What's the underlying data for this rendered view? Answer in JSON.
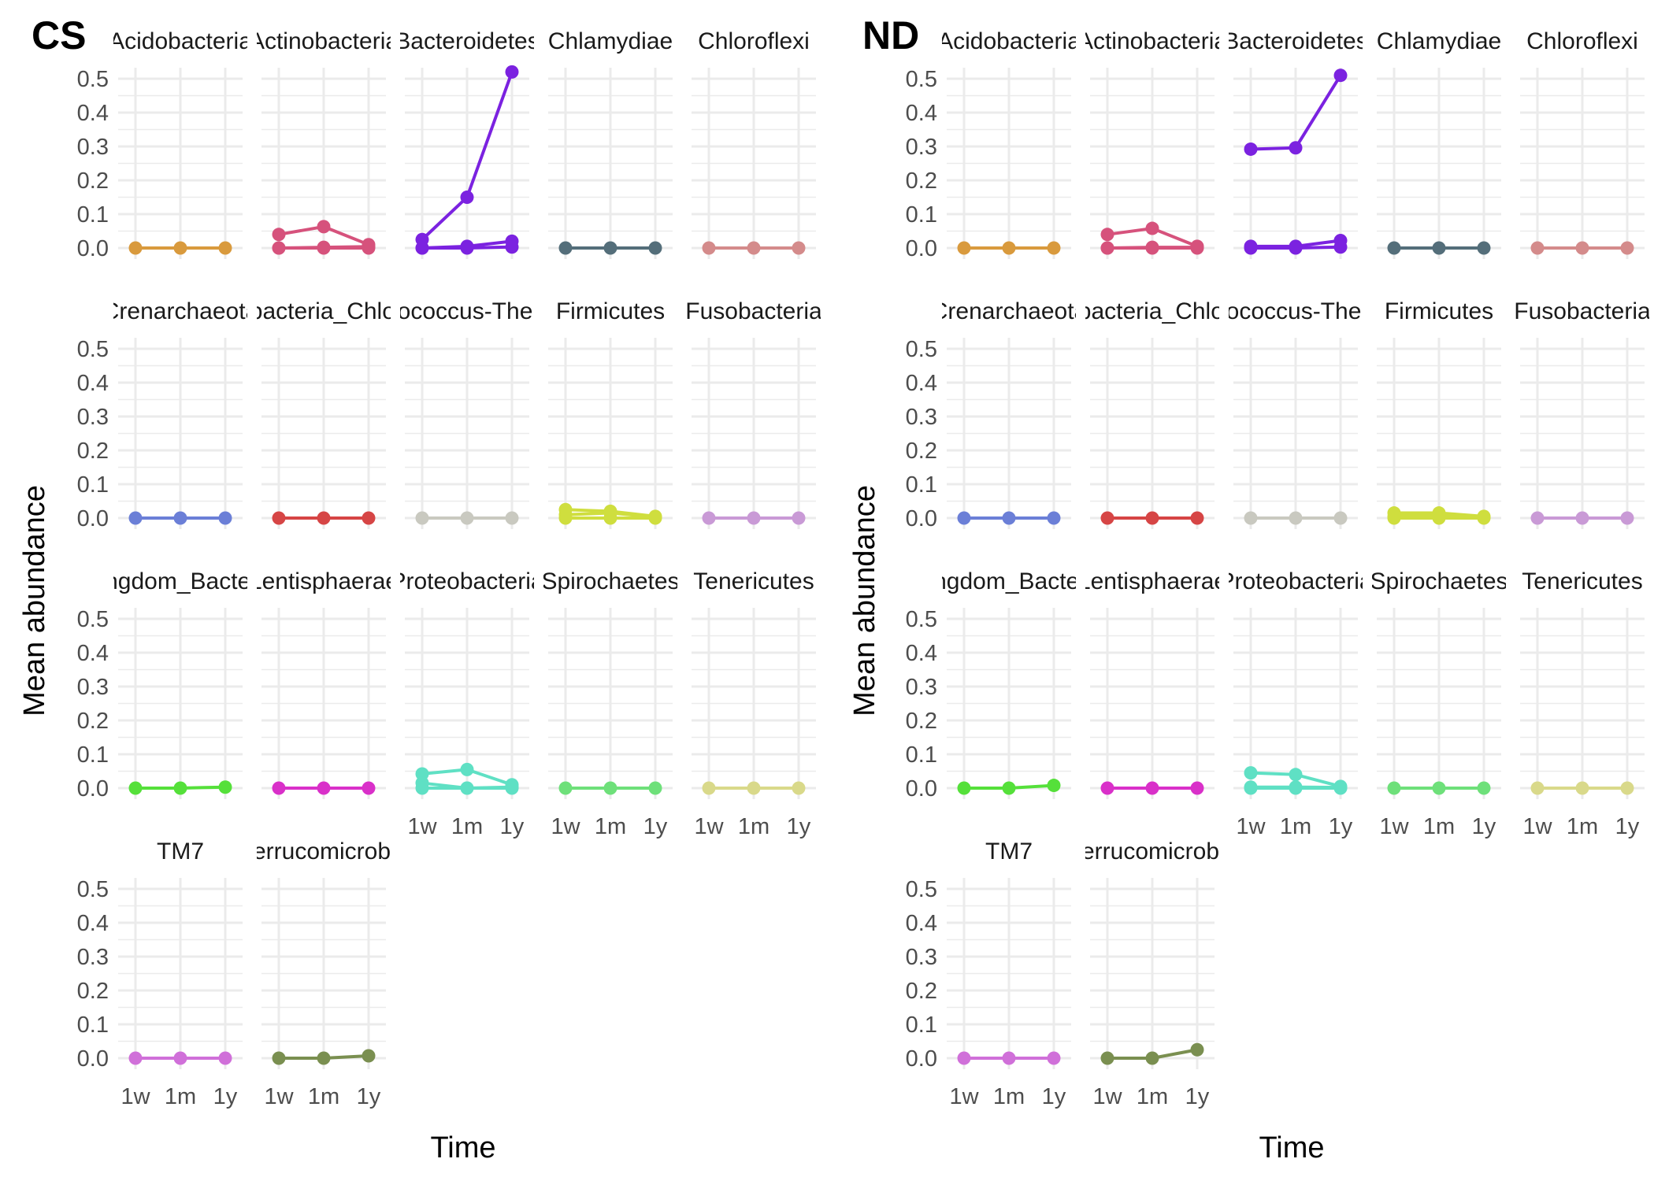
{
  "chart_data": [
    {
      "type": "line",
      "panel_label": "CS",
      "xlabel": "Time",
      "ylabel": "Mean abundance",
      "x_categories": [
        "1w",
        "1m",
        "1y"
      ],
      "ylim": [
        0,
        0.5
      ],
      "y_ticks": [
        "0.0",
        "0.1",
        "0.2",
        "0.3",
        "0.4",
        "0.5"
      ],
      "grid": true,
      "facets": [
        {
          "label": "Acidobacteria",
          "color": "#D99A3D",
          "series": [
            [
              0,
              0,
              0
            ]
          ]
        },
        {
          "label": "Actinobacteria",
          "color": "#D6527C",
          "series": [
            [
              0.04,
              0.063,
              0.01
            ],
            [
              0,
              0.002,
              0.004
            ],
            [
              0,
              0,
              0
            ]
          ]
        },
        {
          "label": "Bacteroidetes",
          "color": "#7B22E0",
          "series": [
            [
              0.025,
              0.15,
              0.52
            ],
            [
              0,
              0.005,
              0.02
            ],
            [
              0,
              0,
              0.003
            ]
          ]
        },
        {
          "label": "Chlamydiae",
          "color": "#546E7A",
          "series": [
            [
              0,
              0,
              0
            ]
          ]
        },
        {
          "label": "Chloroflexi",
          "color": "#D48B8B",
          "series": [
            [
              0,
              0,
              0
            ]
          ]
        },
        {
          "label": "Crenarchaeota",
          "color": "#6B7FD7",
          "series": [
            [
              0,
              0,
              0
            ]
          ]
        },
        {
          "label": "Cyanobacteria_Chloroplast",
          "color": "#D64545",
          "series": [
            [
              0,
              0,
              0
            ]
          ]
        },
        {
          "label": "Deinococcus-Thermus",
          "color": "#C9C9C0",
          "series": [
            [
              0,
              0,
              0
            ]
          ]
        },
        {
          "label": "Firmicutes",
          "color": "#CFDE3E",
          "series": [
            [
              0.025,
              0.02,
              0.005
            ],
            [
              0.01,
              0.015,
              0.003
            ],
            [
              0,
              0,
              0
            ]
          ]
        },
        {
          "label": "Fusobacteria",
          "color": "#C99AD6",
          "series": [
            [
              0,
              0,
              0
            ]
          ]
        },
        {
          "label": "Kingdom_Bacteria",
          "color": "#55E03A",
          "series": [
            [
              0,
              0,
              0.003
            ]
          ]
        },
        {
          "label": "Lentisphaerae",
          "color": "#D930C9",
          "series": [
            [
              0,
              0,
              0
            ]
          ]
        },
        {
          "label": "Proteobacteria",
          "color": "#5FE0C4",
          "series": [
            [
              0.042,
              0.055,
              0.01
            ],
            [
              0.015,
              0,
              0.003
            ],
            [
              0,
              0,
              0
            ]
          ]
        },
        {
          "label": "Spirochaetes",
          "color": "#6EE07A",
          "series": [
            [
              0,
              0,
              0
            ]
          ]
        },
        {
          "label": "Tenericutes",
          "color": "#D9D98A",
          "series": [
            [
              0,
              0,
              0
            ]
          ]
        },
        {
          "label": "TM7",
          "color": "#D070D9",
          "series": [
            [
              0,
              0,
              0
            ]
          ]
        },
        {
          "label": "Verrucomicrobia",
          "color": "#7A8F50",
          "series": [
            [
              0,
              0,
              0.007
            ]
          ]
        }
      ]
    },
    {
      "type": "line",
      "panel_label": "ND",
      "xlabel": "Time",
      "ylabel": "Mean abundance",
      "x_categories": [
        "1w",
        "1m",
        "1y"
      ],
      "ylim": [
        0,
        0.5
      ],
      "y_ticks": [
        "0.0",
        "0.1",
        "0.2",
        "0.3",
        "0.4",
        "0.5"
      ],
      "grid": true,
      "facets": [
        {
          "label": "Acidobacteria",
          "color": "#D99A3D",
          "series": [
            [
              0,
              0,
              0
            ]
          ]
        },
        {
          "label": "Actinobacteria",
          "color": "#D6527C",
          "series": [
            [
              0.04,
              0.058,
              0.005
            ],
            [
              0,
              0.002,
              0.002
            ],
            [
              0,
              0,
              0
            ]
          ]
        },
        {
          "label": "Bacteroidetes",
          "color": "#7B22E0",
          "series": [
            [
              0.292,
              0.296,
              0.51
            ],
            [
              0.005,
              0.005,
              0.022
            ],
            [
              0,
              0,
              0.003
            ]
          ]
        },
        {
          "label": "Chlamydiae",
          "color": "#546E7A",
          "series": [
            [
              0,
              0,
              0
            ]
          ]
        },
        {
          "label": "Chloroflexi",
          "color": "#D48B8B",
          "series": [
            [
              0,
              0,
              0
            ]
          ]
        },
        {
          "label": "Crenarchaeota",
          "color": "#6B7FD7",
          "series": [
            [
              0,
              0,
              0
            ]
          ]
        },
        {
          "label": "Cyanobacteria_Chloroplast",
          "color": "#D64545",
          "series": [
            [
              0,
              0,
              0
            ]
          ]
        },
        {
          "label": "Deinococcus-Thermus",
          "color": "#C9C9C0",
          "series": [
            [
              0,
              0,
              0
            ]
          ]
        },
        {
          "label": "Firmicutes",
          "color": "#CFDE3E",
          "series": [
            [
              0.015,
              0.015,
              0.005
            ],
            [
              0.005,
              0.01,
              0.003
            ],
            [
              0,
              0,
              0
            ]
          ]
        },
        {
          "label": "Fusobacteria",
          "color": "#C99AD6",
          "series": [
            [
              0,
              0,
              0
            ]
          ]
        },
        {
          "label": "Kingdom_Bacteria",
          "color": "#55E03A",
          "series": [
            [
              0,
              0,
              0.008
            ]
          ]
        },
        {
          "label": "Lentisphaerae",
          "color": "#D930C9",
          "series": [
            [
              0,
              0,
              0
            ]
          ]
        },
        {
          "label": "Proteobacteria",
          "color": "#5FE0C4",
          "series": [
            [
              0.045,
              0.04,
              0.005
            ],
            [
              0.003,
              0.003,
              0.002
            ],
            [
              0,
              0,
              0
            ]
          ]
        },
        {
          "label": "Spirochaetes",
          "color": "#6EE07A",
          "series": [
            [
              0,
              0,
              0
            ]
          ]
        },
        {
          "label": "Tenericutes",
          "color": "#D9D98A",
          "series": [
            [
              0,
              0,
              0
            ]
          ]
        },
        {
          "label": "TM7",
          "color": "#D070D9",
          "series": [
            [
              0,
              0,
              0
            ]
          ]
        },
        {
          "label": "Verrucomicrobia",
          "color": "#7A8F50",
          "series": [
            [
              0,
              0,
              0.025
            ]
          ]
        }
      ]
    }
  ]
}
